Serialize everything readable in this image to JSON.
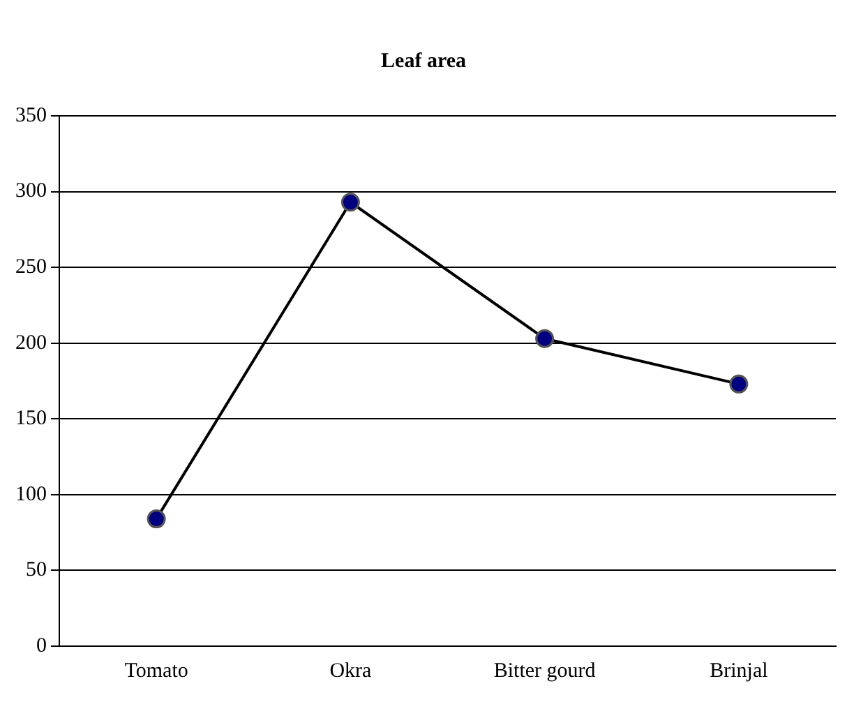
{
  "chart_data": {
    "type": "line",
    "title": "Leaf area",
    "categories": [
      "Tomato",
      "Okra",
      "Bitter gourd",
      "Brinjal"
    ],
    "series": [
      {
        "color": "#000000",
        "values": [
          84,
          293,
          203,
          173
        ]
      }
    ],
    "ylim": [
      0,
      350
    ],
    "yticks": [
      0,
      50,
      100,
      150,
      200,
      250,
      300,
      350
    ],
    "grid": "y",
    "legend": false,
    "marker": "circle",
    "line_style": "solid"
  }
}
